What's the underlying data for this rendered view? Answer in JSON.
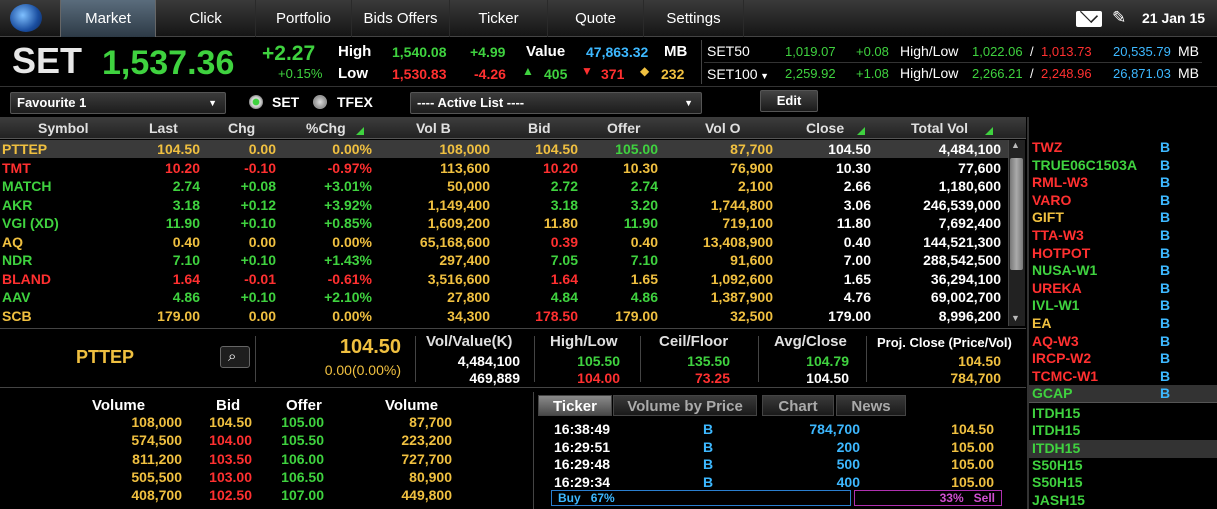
{
  "nav": {
    "tabs": [
      "Market",
      "Click",
      "Portfolio",
      "Bids Offers",
      "Ticker",
      "Quote",
      "Settings"
    ],
    "date": "21 Jan 15"
  },
  "index": {
    "name": "SET",
    "value": "1,537.36",
    "change": "+2.27",
    "pct": "+0.15%",
    "high_label": "High",
    "high": "1,540.08",
    "high_chg": "+4.99",
    "low_label": "Low",
    "low": "1,530.83",
    "low_chg": "-4.26",
    "value_label": "Value",
    "value_amt": "47,863.32",
    "mb": "MB",
    "up": "405",
    "down": "371",
    "unch": "232"
  },
  "sub_indices": [
    {
      "name": "SET50",
      "value": "1,019.07",
      "chg": "+0.08",
      "hl_label": "High/Low",
      "high": "1,022.06",
      "sep": "/",
      "low": "1,013.73",
      "val": "20,535.79",
      "mb": "MB"
    },
    {
      "name": "SET100",
      "value": "2,259.92",
      "chg": "+1.08",
      "hl_label": "High/Low",
      "high": "2,266.21",
      "sep": "/",
      "low": "2,248.96",
      "val": "26,871.03",
      "mb": "MB"
    }
  ],
  "controls": {
    "favourite": "Favourite 1",
    "radio_set": "SET",
    "radio_tfex": "TFEX",
    "active_list": "---- Active List ----",
    "edit": "Edit"
  },
  "table": {
    "headers": [
      "Symbol",
      "Last",
      "Chg",
      "%Chg",
      "Vol B",
      "Bid",
      "Offer",
      "Vol O",
      "Close",
      "Total Vol"
    ],
    "rows": [
      {
        "sym": "PTTEP",
        "last": "104.50",
        "chg": "0.00",
        "pct": "0.00%",
        "volb": "108,000",
        "bid": "104.50",
        "offer": "105.00",
        "volo": "87,700",
        "close": "104.50",
        "total": "4,484,100"
      },
      {
        "sym": "TMT",
        "last": "10.20",
        "chg": "-0.10",
        "pct": "-0.97%",
        "volb": "113,600",
        "bid": "10.20",
        "offer": "10.30",
        "volo": "76,900",
        "close": "10.30",
        "total": "77,600"
      },
      {
        "sym": "MATCH",
        "last": "2.74",
        "chg": "+0.08",
        "pct": "+3.01%",
        "volb": "50,000",
        "bid": "2.72",
        "offer": "2.74",
        "volo": "2,100",
        "close": "2.66",
        "total": "1,180,600"
      },
      {
        "sym": "AKR",
        "last": "3.18",
        "chg": "+0.12",
        "pct": "+3.92%",
        "volb": "1,149,400",
        "bid": "3.18",
        "offer": "3.20",
        "volo": "1,744,800",
        "close": "3.06",
        "total": "246,539,000"
      },
      {
        "sym": "VGI (XD)",
        "last": "11.90",
        "chg": "+0.10",
        "pct": "+0.85%",
        "volb": "1,609,200",
        "bid": "11.80",
        "offer": "11.90",
        "volo": "719,100",
        "close": "11.80",
        "total": "7,692,400"
      },
      {
        "sym": "AQ",
        "last": "0.40",
        "chg": "0.00",
        "pct": "0.00%",
        "volb": "65,168,600",
        "bid": "0.39",
        "offer": "0.40",
        "volo": "13,408,900",
        "close": "0.40",
        "total": "144,521,300"
      },
      {
        "sym": "NDR",
        "last": "7.10",
        "chg": "+0.10",
        "pct": "+1.43%",
        "volb": "297,400",
        "bid": "7.05",
        "offer": "7.10",
        "volo": "91,600",
        "close": "7.00",
        "total": "288,542,500"
      },
      {
        "sym": "BLAND",
        "last": "1.64",
        "chg": "-0.01",
        "pct": "-0.61%",
        "volb": "3,516,600",
        "bid": "1.64",
        "offer": "1.65",
        "volo": "1,092,600",
        "close": "1.65",
        "total": "36,294,100"
      },
      {
        "sym": "AAV",
        "last": "4.86",
        "chg": "+0.10",
        "pct": "+2.10%",
        "volb": "27,800",
        "bid": "4.84",
        "offer": "4.86",
        "volo": "1,387,900",
        "close": "4.76",
        "total": "69,002,700"
      },
      {
        "sym": "SCB",
        "last": "179.00",
        "chg": "0.00",
        "pct": "0.00%",
        "volb": "34,300",
        "bid": "178.50",
        "offer": "179.00",
        "volo": "32,500",
        "close": "179.00",
        "total": "8,996,200"
      }
    ]
  },
  "detail": {
    "symbol": "PTTEP",
    "last": "104.50",
    "chg": "0.00(0.00%)",
    "vol_label": "Vol/Value(K)",
    "vol": "4,484,100",
    "value": "469,889",
    "hl_label": "High/Low",
    "high": "105.50",
    "low": "104.00",
    "cf_label": "Ceil/Floor",
    "ceil": "135.50",
    "floor": "73.25",
    "ac_label": "Avg/Close",
    "avg": "104.79",
    "close": "104.50",
    "pc_label": "Proj. Close (Price/Vol)",
    "proj_price": "104.50",
    "proj_vol": "784,700"
  },
  "bidoffer": {
    "headers": [
      "Volume",
      "Bid",
      "Offer",
      "Volume"
    ],
    "rows": [
      {
        "bvol": "108,000",
        "bid": "104.50",
        "offer": "105.00",
        "ovol": "87,700"
      },
      {
        "bvol": "574,500",
        "bid": "104.00",
        "offer": "105.50",
        "ovol": "223,200"
      },
      {
        "bvol": "811,200",
        "bid": "103.50",
        "offer": "106.00",
        "ovol": "727,700"
      },
      {
        "bvol": "505,500",
        "bid": "103.00",
        "offer": "106.50",
        "ovol": "80,900"
      },
      {
        "bvol": "408,700",
        "bid": "102.50",
        "offer": "107.00",
        "ovol": "449,800"
      }
    ]
  },
  "ticker": {
    "tabs": [
      "Ticker",
      "Volume by Price",
      "Chart",
      "News"
    ],
    "rows": [
      {
        "time": "16:38:49",
        "side": "B",
        "vol": "784,700",
        "price": "104.50"
      },
      {
        "time": "16:29:51",
        "side": "B",
        "vol": "200",
        "price": "105.00"
      },
      {
        "time": "16:29:48",
        "side": "B",
        "vol": "500",
        "price": "105.00"
      },
      {
        "time": "16:29:34",
        "side": "B",
        "vol": "400",
        "price": "105.00"
      }
    ],
    "buy_label": "Buy",
    "buy_pct": "67%",
    "sell_pct": "33%",
    "sell_label": "Sell"
  },
  "right_list": {
    "items": [
      {
        "sym": "TWZ",
        "side": "B",
        "color": "r"
      },
      {
        "sym": "TRUE06C1503A",
        "side": "B",
        "color": "g"
      },
      {
        "sym": "RML-W3",
        "side": "B",
        "color": "r"
      },
      {
        "sym": "VARO",
        "side": "B",
        "color": "r"
      },
      {
        "sym": "GIFT",
        "side": "B",
        "color": "y"
      },
      {
        "sym": "TTA-W3",
        "side": "B",
        "color": "r"
      },
      {
        "sym": "HOTPOT",
        "side": "B",
        "color": "r"
      },
      {
        "sym": "NUSA-W1",
        "side": "B",
        "color": "g"
      },
      {
        "sym": "UREKA",
        "side": "B",
        "color": "r"
      },
      {
        "sym": "IVL-W1",
        "side": "B",
        "color": "g"
      },
      {
        "sym": "EA",
        "side": "B",
        "color": "y"
      },
      {
        "sym": "AQ-W3",
        "side": "B",
        "color": "r"
      },
      {
        "sym": "IRCP-W2",
        "side": "B",
        "color": "r"
      },
      {
        "sym": "TCMC-W1",
        "side": "B",
        "color": "r"
      },
      {
        "sym": "GCAP",
        "side": "B",
        "color": "g"
      }
    ],
    "items2": [
      "ITDH15",
      "ITDH15",
      "ITDH15",
      "S50H15",
      "S50H15",
      "JASH15"
    ]
  }
}
